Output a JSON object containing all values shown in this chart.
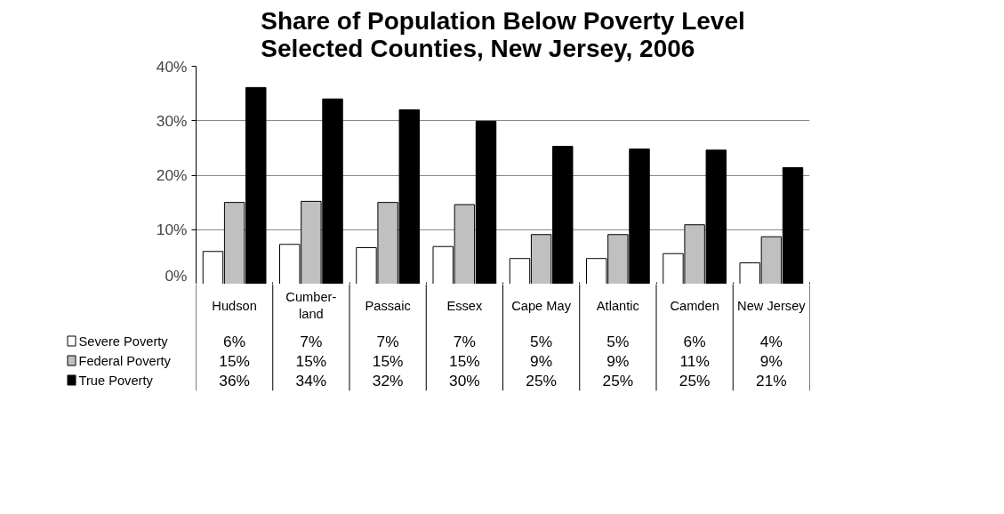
{
  "chart_data": {
    "type": "bar",
    "title": "Share of Population Below Poverty Level\nSelected Counties, New Jersey, 2006",
    "categories": [
      "Hudson",
      "Cumber-\nland",
      "Passaic",
      "Essex",
      "Cape May",
      "Atlantic",
      "Camden",
      "New Jersey"
    ],
    "series": [
      {
        "name": "Severe Poverty",
        "color": "#ffffff",
        "values": [
          6.0,
          7.3,
          6.7,
          6.9,
          4.7,
          4.7,
          5.6,
          3.9
        ],
        "value_labels": [
          "6%",
          "7%",
          "7%",
          "7%",
          "5%",
          "5%",
          "6%",
          "4%"
        ]
      },
      {
        "name": "Federal Poverty",
        "color": "#c0c0c0",
        "values": [
          15.0,
          15.2,
          15.0,
          14.6,
          9.1,
          9.1,
          10.9,
          8.7
        ],
        "value_labels": [
          "15%",
          "15%",
          "15%",
          "15%",
          "9%",
          "9%",
          "11%",
          "9%"
        ]
      },
      {
        "name": "True Poverty",
        "color": "#000000",
        "values": [
          36.1,
          34.0,
          32.0,
          29.9,
          25.3,
          24.8,
          24.6,
          21.4
        ],
        "value_labels": [
          "36%",
          "34%",
          "32%",
          "30%",
          "25%",
          "25%",
          "25%",
          "21%"
        ]
      }
    ],
    "ylim": [
      0,
      40
    ],
    "yticks": [
      {
        "value": 0,
        "label": "0%"
      },
      {
        "value": 10,
        "label": "10%"
      },
      {
        "value": 20,
        "label": "20%"
      },
      {
        "value": 30,
        "label": "30%"
      },
      {
        "value": 40,
        "label": "40%"
      }
    ],
    "grid": "y",
    "legend": "bottom left",
    "tick_labels": "y"
  }
}
